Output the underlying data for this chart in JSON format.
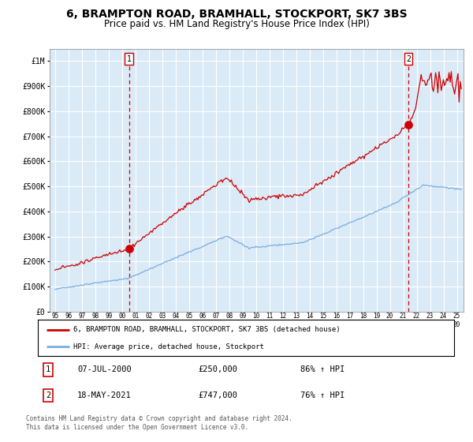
{
  "title": "6, BRAMPTON ROAD, BRAMHALL, STOCKPORT, SK7 3BS",
  "subtitle": "Price paid vs. HM Land Registry's House Price Index (HPI)",
  "title_fontsize": 10,
  "subtitle_fontsize": 8.5,
  "bg_color": "#daeaf7",
  "grid_color": "#ffffff",
  "red_line_color": "#cc0000",
  "blue_line_color": "#7aade0",
  "sale1_date": 2000.52,
  "sale1_price": 250000,
  "sale2_date": 2021.38,
  "sale2_price": 747000,
  "xlim": [
    1994.6,
    2025.5
  ],
  "ylim": [
    0,
    1050000
  ],
  "yticks": [
    0,
    100000,
    200000,
    300000,
    400000,
    500000,
    600000,
    700000,
    800000,
    900000,
    1000000
  ],
  "ytick_labels": [
    "£0",
    "£100K",
    "£200K",
    "£300K",
    "£400K",
    "£500K",
    "£600K",
    "£700K",
    "£800K",
    "£900K",
    "£1M"
  ],
  "xticks": [
    1995,
    1996,
    1997,
    1998,
    1999,
    2000,
    2001,
    2002,
    2003,
    2004,
    2005,
    2006,
    2007,
    2008,
    2009,
    2010,
    2011,
    2012,
    2013,
    2014,
    2015,
    2016,
    2017,
    2018,
    2019,
    2020,
    2021,
    2022,
    2023,
    2024,
    2025
  ],
  "legend_red_label": "6, BRAMPTON ROAD, BRAMHALL, STOCKPORT, SK7 3BS (detached house)",
  "legend_blue_label": "HPI: Average price, detached house, Stockport",
  "note1_label": "1",
  "note1_date": "07-JUL-2000",
  "note1_price": "£250,000",
  "note1_pct": "86% ↑ HPI",
  "note2_label": "2",
  "note2_date": "18-MAY-2021",
  "note2_price": "£747,000",
  "note2_pct": "76% ↑ HPI",
  "footer": "Contains HM Land Registry data © Crown copyright and database right 2024.\nThis data is licensed under the Open Government Licence v3.0."
}
